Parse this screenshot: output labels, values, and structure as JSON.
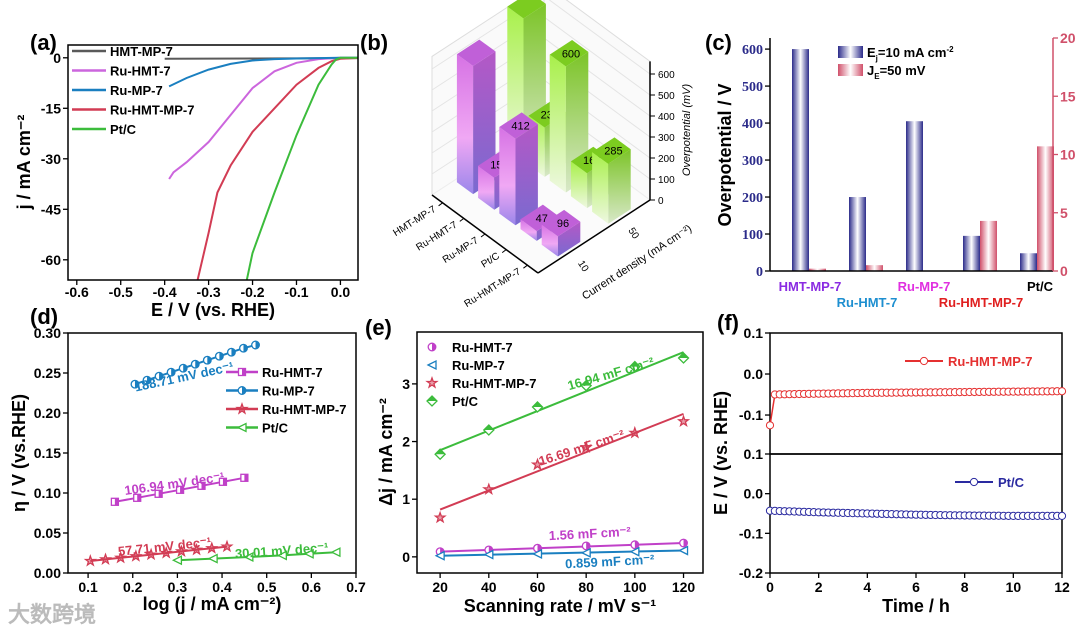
{
  "panel_labels": [
    "(a)",
    "(b)",
    "(c)",
    "(d)",
    "(e)",
    "(f)"
  ],
  "watermark": "大数跨境",
  "chart_data": [
    {
      "panel": "(a)",
      "type": "line",
      "xlabel": "E / V (vs. RHE)",
      "ylabel": "j / mA cm⁻²",
      "xlim": [
        -0.62,
        0.04
      ],
      "ylim": [
        -66,
        3.8
      ],
      "xticks": [
        -0.6,
        -0.5,
        -0.4,
        -0.3,
        -0.2,
        -0.1,
        0.0
      ],
      "xtick_labels": [
        "-0.6",
        "-0.5",
        "-0.4",
        "-0.3",
        "-0.2",
        "-0.1",
        "0.0"
      ],
      "yticks": [
        0,
        -15,
        -30,
        -45,
        -60
      ],
      "ytick_labels": [
        "0",
        "-15",
        "-30",
        "-45",
        "-60"
      ],
      "legend": "top-left",
      "series": [
        {
          "name": "HMT-MP-7",
          "color": "#5a5a5a",
          "x": [
            -0.4,
            0.05
          ],
          "y": [
            -0.3,
            -0.1
          ]
        },
        {
          "name": "Ru-HMT-7",
          "color": "#cc66dd",
          "x": [
            -0.39,
            -0.38,
            -0.35,
            -0.3,
            -0.25,
            -0.2,
            -0.15,
            -0.1,
            -0.05,
            0,
            0.05
          ],
          "y": [
            -36,
            -34,
            -31,
            -25,
            -17,
            -9,
            -4,
            -1.5,
            -0.4,
            0,
            0
          ]
        },
        {
          "name": "Ru-MP-7",
          "color": "#1a7fc0",
          "x": [
            -0.39,
            -0.35,
            -0.3,
            -0.25,
            -0.2,
            -0.15,
            -0.1,
            -0.05,
            0,
            0.05
          ],
          "y": [
            -8.5,
            -6,
            -3.5,
            -1.8,
            -0.8,
            -0.4,
            -0.2,
            -0.1,
            0,
            0
          ]
        },
        {
          "name": "Ru-HMT-MP-7",
          "color": "#d23c54",
          "x": [
            -0.325,
            -0.3,
            -0.28,
            -0.25,
            -0.2,
            -0.15,
            -0.1,
            -0.05,
            -0.02,
            0,
            0.05
          ],
          "y": [
            -66,
            -52,
            -40,
            -32,
            -22,
            -15,
            -8,
            -3,
            -1,
            -0.3,
            0
          ]
        },
        {
          "name": "Pt/C",
          "color": "#3cbc3c",
          "x": [
            -0.213,
            -0.2,
            -0.15,
            -0.1,
            -0.05,
            -0.02,
            -0.01,
            0,
            0.05
          ],
          "y": [
            -66,
            -58,
            -40,
            -23,
            -8,
            -2,
            -0.5,
            0,
            0
          ]
        }
      ]
    },
    {
      "panel": "(b)",
      "type": "bar3d",
      "categories": [
        "HMT-MP-7",
        "Ru-HMT-7",
        "Ru-MP-7",
        "Pt/C",
        "Ru-HMT-MP-7"
      ],
      "ylabel": "Current density (mA cm⁻²)",
      "zlabel": "Overpotential (mV)",
      "zticks": [
        0,
        100,
        200,
        300,
        400,
        500,
        600
      ],
      "ztick_labels": [
        "0",
        "100",
        "200",
        "300",
        "400",
        "500",
        "600"
      ],
      "series": [
        {
          "name": "10",
          "color": "#c86be0",
          "values": [
            610,
            153,
            412,
            47,
            96
          ],
          "labels": [
            null,
            "153",
            "412",
            "47",
            "96"
          ]
        },
        {
          "name": "50",
          "color": "#8ad62a",
          "values": [
            680,
            235,
            600,
            166,
            285
          ],
          "labels": [
            null,
            "235",
            "600",
            "166",
            "285"
          ]
        }
      ]
    },
    {
      "panel": "(c)",
      "type": "bar",
      "categories": [
        "HMT-MP-7",
        "Ru-HMT-7",
        "Ru-MP-7",
        "Ru-HMT-MP-7",
        "Pt/C"
      ],
      "category_colors": [
        "#8a2be2",
        "#1e8fd0",
        "#e030e0",
        "#e02020",
        "#000000"
      ],
      "ylabel": "Overpotential / V",
      "ylim": [
        0,
        630
      ],
      "y2lim": [
        0,
        20
      ],
      "yticks": [
        0,
        100,
        200,
        300,
        400,
        500,
        600
      ],
      "ytick_labels": [
        "0",
        "100",
        "200",
        "300",
        "400",
        "500",
        "600"
      ],
      "y2ticks": [
        0,
        5,
        10,
        15,
        20
      ],
      "y2tick_labels": [
        "0",
        "5",
        "10",
        "15",
        "20"
      ],
      "legend": "top-center",
      "series": [
        {
          "legend": {
            "main": "E",
            "sub": "j",
            "rest": "=10 mA cm",
            "sup": "-2"
          },
          "color": "#2b2b8a",
          "axis": "left",
          "values": [
            600,
            200,
            405,
            95,
            48
          ]
        },
        {
          "legend": {
            "main": "J",
            "sub": "E",
            "rest": "=50 mV",
            "sup": ""
          },
          "color": "#d0506a",
          "axis": "right",
          "values": [
            0.2,
            0.5,
            0,
            4.3,
            10.7
          ]
        }
      ]
    },
    {
      "panel": "(d)",
      "type": "line",
      "xlabel": "log (j / mA cm⁻²)",
      "ylabel": "η / V (vs.RHE)",
      "xlim": [
        0.055,
        0.7
      ],
      "ylim": [
        0,
        0.3
      ],
      "xticks": [
        0.1,
        0.2,
        0.3,
        0.4,
        0.5,
        0.6,
        0.7
      ],
      "xtick_labels": [
        "0.1",
        "0.2",
        "0.3",
        "0.4",
        "0.5",
        "0.6",
        "0.7"
      ],
      "yticks": [
        0,
        0.05,
        0.1,
        0.15,
        0.2,
        0.25,
        0.3
      ],
      "ytick_labels": [
        "0.00",
        "0.05",
        "0.10",
        "0.15",
        "0.20",
        "0.25",
        "0.30"
      ],
      "legend": "upper-right",
      "series": [
        {
          "name": "Ru-HMT-7",
          "color": "#c040c8",
          "marker": "square",
          "slope": "106.94 mV dec⁻¹",
          "x": [
            0.16,
            0.21,
            0.258,
            0.306,
            0.354,
            0.402,
            0.45
          ],
          "y": [
            0.089,
            0.094,
            0.099,
            0.104,
            0.109,
            0.114,
            0.119
          ]
        },
        {
          "name": "Ru-MP-7",
          "color": "#1a7fc0",
          "marker": "circle",
          "slope": "188.71 mV dec⁻¹",
          "x": [
            0.205,
            0.232,
            0.259,
            0.286,
            0.313,
            0.34,
            0.367,
            0.394,
            0.421,
            0.448,
            0.475
          ],
          "y": [
            0.236,
            0.241,
            0.246,
            0.251,
            0.256,
            0.261,
            0.266,
            0.271,
            0.276,
            0.281,
            0.285
          ]
        },
        {
          "name": "Ru-HMT-MP-7",
          "color": "#d23c54",
          "marker": "star",
          "slope": "57.71 mV dec⁻¹",
          "x": [
            0.105,
            0.139,
            0.173,
            0.207,
            0.241,
            0.275,
            0.309,
            0.343,
            0.377,
            0.411
          ],
          "y": [
            0.015,
            0.017,
            0.019,
            0.021,
            0.023,
            0.025,
            0.027,
            0.029,
            0.031,
            0.033
          ]
        },
        {
          "name": "Pt/C",
          "color": "#3cbc3c",
          "marker": "triangle",
          "slope": "30.01 mV dec⁻¹",
          "x": [
            0.3,
            0.38,
            0.46,
            0.535,
            0.595,
            0.655
          ],
          "y": [
            0.016,
            0.018,
            0.02,
            0.022,
            0.024,
            0.026
          ]
        }
      ]
    },
    {
      "panel": "(e)",
      "type": "scatter",
      "xlabel": "Scanning rate / mV s⁻¹",
      "ylabel": "Δj / mA cm⁻²",
      "xlim": [
        10.5,
        128
      ],
      "ylim": [
        -0.28,
        3.9
      ],
      "xticks": [
        20,
        40,
        60,
        80,
        100,
        120
      ],
      "xtick_labels": [
        "20",
        "40",
        "60",
        "80",
        "100",
        "120"
      ],
      "yticks": [
        0,
        1,
        2,
        3
      ],
      "ytick_labels": [
        "0",
        "1",
        "2",
        "3"
      ],
      "legend": "top-left",
      "x": [
        20,
        40,
        60,
        80,
        100,
        120
      ],
      "series": [
        {
          "name": "Ru-HMT-7",
          "color": "#c040c8",
          "marker": "circle",
          "fit_label": "1.56 mF cm⁻²",
          "fit": [
            0.09,
            0.24
          ],
          "values": [
            0.09,
            0.12,
            0.15,
            0.19,
            0.21,
            0.24
          ]
        },
        {
          "name": "Ru-MP-7",
          "color": "#1a7fc0",
          "marker": "triangle",
          "fit_label": "0.859 mF cm⁻²",
          "fit": [
            0.02,
            0.11
          ],
          "values": [
            0.02,
            0.04,
            0.05,
            0.07,
            0.09,
            0.11
          ]
        },
        {
          "name": "Ru-HMT-MP-7",
          "color": "#d23c54",
          "marker": "star",
          "fit_label": "16.69 mF cm⁻²",
          "fit": [
            0.82,
            2.48
          ],
          "values": [
            0.68,
            1.17,
            1.6,
            1.9,
            2.15,
            2.35
          ]
        },
        {
          "name": "Pt/C",
          "color": "#3cbc3c",
          "marker": "diamond",
          "fit_label": "16.94 mF cm⁻²",
          "fit": [
            1.85,
            3.55
          ],
          "values": [
            1.78,
            2.2,
            2.6,
            2.97,
            3.3,
            3.45
          ]
        }
      ]
    },
    {
      "panel": "(f)",
      "type": "line",
      "xlabel": "Time / h",
      "ylabel": "E / V (vs. RHE)",
      "xlim": [
        0,
        12
      ],
      "xticks": [
        0,
        2,
        4,
        6,
        8,
        10,
        12
      ],
      "xtick_labels": [
        "0",
        "2",
        "4",
        "6",
        "8",
        "10",
        "12"
      ],
      "subplots": [
        {
          "name": "Ru-HMT-MP-7",
          "color": "#e53030",
          "ylim": [
            -0.195,
            0.1
          ],
          "yticks": [
            0.1,
            0.0,
            -0.1
          ],
          "ytick_labels": [
            "0.1",
            "0.0",
            "-0.1"
          ],
          "t": [
            0,
            0.1,
            1,
            2,
            4,
            6,
            8,
            10,
            12
          ],
          "E": [
            -0.125,
            -0.05,
            -0.049,
            -0.048,
            -0.046,
            -0.045,
            -0.044,
            -0.043,
            -0.042
          ]
        },
        {
          "name": "Pt/C",
          "color": "#2a2aa0",
          "ylim": [
            -0.2,
            0.1
          ],
          "yticks": [
            0.1,
            0.0,
            -0.1,
            -0.2
          ],
          "ytick_labels": [
            "0.1",
            "0.0",
            "-0.1",
            "-0.2"
          ],
          "t": [
            0,
            1,
            2,
            4,
            6,
            8,
            10,
            12
          ],
          "E": [
            -0.043,
            -0.045,
            -0.047,
            -0.05,
            -0.053,
            -0.055,
            -0.056,
            -0.056
          ]
        }
      ]
    }
  ]
}
